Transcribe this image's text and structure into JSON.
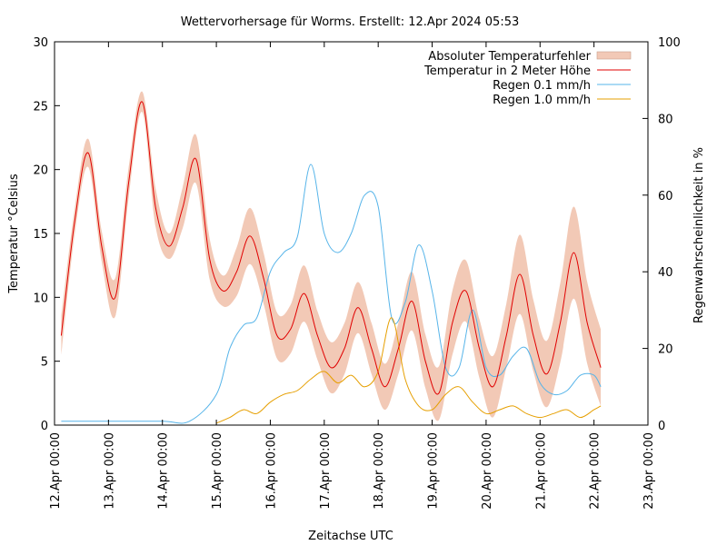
{
  "chart_data": {
    "type": "line",
    "title": "Wettervorhersage für Worms. Erstellt: 12.Apr 2024 05:53",
    "xlabel": "Zeitachse UTC",
    "ylabel": "Temperatur °Celsius",
    "y2label": "Regenwahrscheinlichkeit in %",
    "xlim": [
      "2024-04-12T00:00",
      "2024-04-23T00:00"
    ],
    "ylim": [
      0,
      30
    ],
    "y2lim": [
      0,
      100
    ],
    "x_tick_labels": [
      "12.Apr 00:00",
      "13.Apr 00:00",
      "14.Apr 00:00",
      "15.Apr 00:00",
      "16.Apr 00:00",
      "17.Apr 00:00",
      "18.Apr 00:00",
      "19.Apr 00:00",
      "20.Apr 00:00",
      "21.Apr 00:00",
      "22.Apr 00:00",
      "23.Apr 00:00"
    ],
    "y_tick_labels": [
      "0",
      "5",
      "10",
      "15",
      "20",
      "25",
      "30"
    ],
    "y2_tick_labels": [
      "0",
      "20",
      "40",
      "60",
      "80",
      "100"
    ],
    "legend_position": "top-right",
    "legend": [
      {
        "label": "Absoluter Temperaturfehler",
        "color": "#f2c9b6",
        "kind": "band"
      },
      {
        "label": "Temperatur in 2 Meter Höhe",
        "color": "#e00000",
        "kind": "line"
      },
      {
        "label": "Regen 0.1 mm/h",
        "color": "#56b4e9",
        "kind": "line"
      },
      {
        "label": "Regen 1.0 mm/h",
        "color": "#e69f00",
        "kind": "line"
      }
    ],
    "series": [
      {
        "name": "Temperatur in 2 Meter Höhe",
        "axis": "y",
        "x": [
          "2024-04-12T03:00",
          "2024-04-12T09:00",
          "2024-04-12T15:00",
          "2024-04-12T21:00",
          "2024-04-13T03:00",
          "2024-04-13T09:00",
          "2024-04-13T15:00",
          "2024-04-13T21:00",
          "2024-04-14T03:00",
          "2024-04-14T09:00",
          "2024-04-14T15:00",
          "2024-04-14T21:00",
          "2024-04-15T03:00",
          "2024-04-15T09:00",
          "2024-04-15T15:00",
          "2024-04-15T21:00",
          "2024-04-16T03:00",
          "2024-04-16T09:00",
          "2024-04-16T15:00",
          "2024-04-16T21:00",
          "2024-04-17T03:00",
          "2024-04-17T09:00",
          "2024-04-17T15:00",
          "2024-04-17T21:00",
          "2024-04-18T03:00",
          "2024-04-18T09:00",
          "2024-04-18T15:00",
          "2024-04-18T21:00",
          "2024-04-19T03:00",
          "2024-04-19T09:00",
          "2024-04-19T15:00",
          "2024-04-19T21:00",
          "2024-04-20T03:00",
          "2024-04-20T09:00",
          "2024-04-20T15:00",
          "2024-04-20T21:00",
          "2024-04-21T03:00",
          "2024-04-21T09:00",
          "2024-04-21T15:00",
          "2024-04-21T21:00",
          "2024-04-22T03:00"
        ],
        "values": [
          7,
          16,
          21.3,
          14,
          10,
          19,
          25.3,
          17,
          14,
          17,
          20.8,
          13,
          10.5,
          12,
          14.8,
          11.5,
          7,
          7.5,
          10.3,
          7,
          4.5,
          6,
          9.2,
          6,
          3,
          6,
          9.7,
          5,
          2.5,
          8,
          10.5,
          6,
          3,
          7,
          11.8,
          7,
          4,
          8,
          13.5,
          8,
          4.5
        ]
      },
      {
        "name": "Absoluter Temperaturfehler",
        "axis": "y",
        "band_halfwidth": [
          1.5,
          1,
          1.1,
          1.2,
          1.5,
          1.2,
          0.8,
          1.5,
          1,
          1.6,
          1.9,
          1.6,
          1.2,
          1.9,
          2.2,
          2,
          1.8,
          1.9,
          2.2,
          1.9,
          2,
          2,
          2,
          2,
          1.8,
          2,
          2.3,
          2.1,
          2.1,
          2.5,
          2.4,
          2.3,
          2.4,
          2.5,
          3.1,
          2.8,
          2.6,
          3.1,
          3.6,
          3.2,
          3
        ]
      },
      {
        "name": "Regen 0.1 mm/h",
        "axis": "y2",
        "x": [
          "2024-04-12T03:00",
          "2024-04-13T00:00",
          "2024-04-14T00:00",
          "2024-04-14T12:00",
          "2024-04-15T00:00",
          "2024-04-15T06:00",
          "2024-04-15T12:00",
          "2024-04-15T18:00",
          "2024-04-16T00:00",
          "2024-04-16T06:00",
          "2024-04-16T12:00",
          "2024-04-16T18:00",
          "2024-04-17T00:00",
          "2024-04-17T06:00",
          "2024-04-17T12:00",
          "2024-04-17T18:00",
          "2024-04-18T00:00",
          "2024-04-18T06:00",
          "2024-04-18T12:00",
          "2024-04-18T18:00",
          "2024-04-19T00:00",
          "2024-04-19T06:00",
          "2024-04-19T12:00",
          "2024-04-19T18:00",
          "2024-04-20T00:00",
          "2024-04-20T06:00",
          "2024-04-20T12:00",
          "2024-04-20T18:00",
          "2024-04-21T00:00",
          "2024-04-21T06:00",
          "2024-04-21T12:00",
          "2024-04-21T18:00",
          "2024-04-22T00:00",
          "2024-04-22T03:00"
        ],
        "values": [
          1,
          1,
          1,
          1,
          8,
          20,
          26,
          28,
          40,
          45,
          49,
          68,
          50,
          45,
          50,
          60,
          57,
          28,
          32,
          47,
          35,
          15,
          15,
          30,
          15,
          13,
          18,
          20,
          11,
          8,
          9,
          13,
          13,
          10
        ]
      },
      {
        "name": "Regen 1.0 mm/h",
        "axis": "y2",
        "x": [
          "2024-04-15T00:00",
          "2024-04-15T06:00",
          "2024-04-15T12:00",
          "2024-04-15T18:00",
          "2024-04-16T00:00",
          "2024-04-16T06:00",
          "2024-04-16T12:00",
          "2024-04-16T18:00",
          "2024-04-17T00:00",
          "2024-04-17T06:00",
          "2024-04-17T12:00",
          "2024-04-17T18:00",
          "2024-04-18T00:00",
          "2024-04-18T06:00",
          "2024-04-18T12:00",
          "2024-04-18T18:00",
          "2024-04-19T00:00",
          "2024-04-19T06:00",
          "2024-04-19T12:00",
          "2024-04-19T18:00",
          "2024-04-20T00:00",
          "2024-04-20T06:00",
          "2024-04-20T12:00",
          "2024-04-20T18:00",
          "2024-04-21T00:00",
          "2024-04-21T06:00",
          "2024-04-21T12:00",
          "2024-04-21T18:00",
          "2024-04-22T00:00",
          "2024-04-22T03:00"
        ],
        "values": [
          0.5,
          2,
          4,
          3,
          6,
          8,
          9,
          12,
          14,
          11,
          13,
          10,
          14,
          28,
          12,
          5,
          4,
          8,
          10,
          6,
          3,
          4,
          5,
          3,
          2,
          3,
          4,
          2,
          4,
          5
        ]
      }
    ]
  }
}
